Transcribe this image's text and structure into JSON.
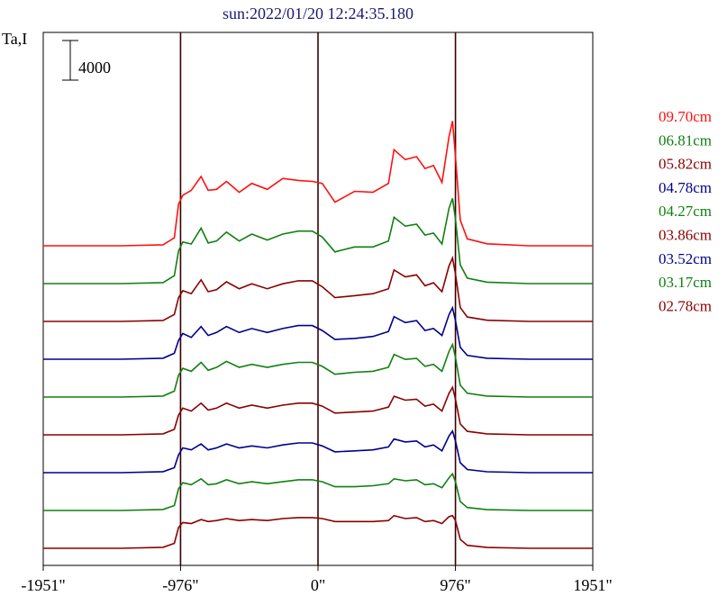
{
  "chart_data": {
    "type": "line",
    "title": "sun:2022/01/20 12:24:35.180",
    "ylabel": "Ta,I",
    "xlabel": "",
    "xlim": [
      -1951,
      1951
    ],
    "x_ticks": [
      {
        "value": -1951,
        "label": "-1951\""
      },
      {
        "value": -976,
        "label": "-976\""
      },
      {
        "value": 0,
        "label": "0\""
      },
      {
        "value": 976,
        "label": "976\""
      },
      {
        "value": 1951,
        "label": "1951\""
      }
    ],
    "vertical_lines": [
      -976,
      0,
      976
    ],
    "scale_bar": {
      "value": 4000,
      "label": "4000"
    },
    "series": [
      {
        "name": "09.70cm",
        "color": "#ff1010",
        "offset": 0,
        "x": [
          -1951,
          -1400,
          -1100,
          -1020,
          -990,
          -960,
          -900,
          -830,
          -780,
          -720,
          -650,
          -560,
          -470,
          -360,
          -250,
          -140,
          -40,
          30,
          120,
          260,
          390,
          500,
          540,
          620,
          700,
          760,
          820,
          880,
          930,
          955,
          976,
          1010,
          1060,
          1200,
          1500,
          1951
        ],
        "y": [
          0,
          0,
          100,
          800,
          4200,
          5100,
          5600,
          7000,
          5600,
          5700,
          6500,
          5400,
          6300,
          5700,
          6800,
          6600,
          6500,
          6300,
          4400,
          5500,
          5400,
          6300,
          9700,
          8700,
          9000,
          7800,
          8100,
          6400,
          11000,
          12600,
          9000,
          2600,
          700,
          200,
          0,
          0
        ]
      },
      {
        "name": "06.81cm",
        "color": "#108010",
        "offset": 0,
        "x": [
          -1951,
          -1400,
          -1100,
          -1020,
          -990,
          -960,
          -900,
          -830,
          -780,
          -720,
          -650,
          -560,
          -470,
          -360,
          -250,
          -140,
          -40,
          30,
          120,
          260,
          390,
          500,
          540,
          620,
          700,
          760,
          820,
          880,
          930,
          955,
          976,
          1010,
          1060,
          1200,
          1500,
          1951
        ],
        "y": [
          0,
          0,
          100,
          800,
          3300,
          4200,
          4000,
          5600,
          4100,
          4300,
          5200,
          4300,
          5000,
          4400,
          5000,
          5300,
          5300,
          4700,
          3200,
          3700,
          3700,
          4300,
          6700,
          5800,
          6000,
          4900,
          5100,
          4000,
          7600,
          8600,
          6500,
          1900,
          550,
          150,
          0,
          0
        ]
      },
      {
        "name": "05.82cm",
        "color": "#8b0000",
        "offset": 0,
        "x": [
          -1951,
          -1400,
          -1100,
          -1020,
          -990,
          -960,
          -900,
          -830,
          -780,
          -720,
          -650,
          -560,
          -470,
          -360,
          -250,
          -140,
          -40,
          30,
          120,
          260,
          390,
          500,
          540,
          620,
          700,
          760,
          820,
          880,
          930,
          955,
          976,
          1010,
          1060,
          1200,
          1500,
          1951
        ],
        "y": [
          0,
          0,
          100,
          700,
          2400,
          3100,
          2800,
          4200,
          3000,
          3200,
          4000,
          3300,
          3800,
          3300,
          3800,
          4100,
          4100,
          3500,
          2400,
          2600,
          2800,
          3300,
          5200,
          4500,
          4700,
          3600,
          3900,
          3000,
          5600,
          6400,
          4800,
          1400,
          450,
          120,
          0,
          0
        ]
      },
      {
        "name": "04.78cm",
        "color": "#00008b",
        "offset": 0,
        "x": [
          -1951,
          -1400,
          -1100,
          -1020,
          -990,
          -960,
          -900,
          -830,
          -780,
          -720,
          -650,
          -560,
          -470,
          -360,
          -250,
          -140,
          -40,
          30,
          120,
          260,
          390,
          500,
          540,
          620,
          700,
          760,
          820,
          880,
          930,
          955,
          976,
          1010,
          1060,
          1200,
          1500,
          1951
        ],
        "y": [
          0,
          0,
          100,
          600,
          1900,
          2600,
          2200,
          3300,
          2400,
          2700,
          3300,
          2700,
          3100,
          2700,
          3100,
          3400,
          3400,
          2900,
          2000,
          2100,
          2300,
          2800,
          4300,
          3700,
          3900,
          2900,
          3100,
          2400,
          4500,
          5200,
          3900,
          1200,
          380,
          100,
          0,
          0
        ]
      },
      {
        "name": "04.27cm",
        "color": "#108010",
        "offset": 0,
        "x": [
          -1951,
          -1400,
          -1100,
          -1020,
          -990,
          -960,
          -900,
          -830,
          -780,
          -720,
          -650,
          -560,
          -470,
          -360,
          -250,
          -140,
          -40,
          30,
          120,
          260,
          390,
          500,
          540,
          620,
          700,
          760,
          820,
          880,
          930,
          955,
          976,
          1010,
          1060,
          1200,
          1500,
          1951
        ],
        "y": [
          0,
          0,
          100,
          600,
          2200,
          2900,
          2600,
          3500,
          2700,
          3000,
          3600,
          3000,
          3300,
          3000,
          3300,
          3500,
          3500,
          3100,
          2300,
          2500,
          2600,
          3000,
          4300,
          3800,
          3900,
          3100,
          3300,
          2600,
          4600,
          5300,
          4000,
          1200,
          380,
          100,
          0,
          0
        ]
      },
      {
        "name": "03.86cm",
        "color": "#8b0000",
        "offset": 0,
        "x": [
          -1951,
          -1400,
          -1100,
          -1020,
          -990,
          -960,
          -900,
          -830,
          -780,
          -720,
          -650,
          -560,
          -470,
          -360,
          -250,
          -140,
          -40,
          30,
          120,
          260,
          390,
          500,
          540,
          620,
          700,
          760,
          820,
          880,
          930,
          955,
          976,
          1010,
          1060,
          1200,
          1500,
          1951
        ],
        "y": [
          0,
          0,
          100,
          550,
          2000,
          2700,
          2400,
          3200,
          2500,
          2700,
          3200,
          2700,
          3000,
          2700,
          3000,
          3200,
          3200,
          2900,
          2200,
          2300,
          2400,
          2800,
          3900,
          3500,
          3600,
          2900,
          3100,
          2400,
          4200,
          4800,
          3600,
          1100,
          350,
          100,
          0,
          0
        ]
      },
      {
        "name": "03.52cm",
        "color": "#00008b",
        "offset": 0,
        "x": [
          -1951,
          -1400,
          -1100,
          -1020,
          -990,
          -960,
          -900,
          -830,
          -780,
          -720,
          -650,
          -560,
          -470,
          -360,
          -250,
          -140,
          -40,
          30,
          120,
          260,
          390,
          500,
          540,
          620,
          700,
          760,
          820,
          880,
          930,
          955,
          976,
          1010,
          1060,
          1200,
          1500,
          1951
        ],
        "y": [
          0,
          0,
          100,
          500,
          1800,
          2500,
          2300,
          2900,
          2300,
          2500,
          2900,
          2500,
          2700,
          2500,
          2800,
          3000,
          3000,
          2700,
          2100,
          2200,
          2300,
          2600,
          3400,
          3100,
          3200,
          2600,
          2800,
          2200,
          3700,
          4200,
          3200,
          1000,
          320,
          90,
          0,
          0
        ]
      },
      {
        "name": "03.17cm",
        "color": "#108010",
        "offset": 0,
        "x": [
          -1951,
          -1400,
          -1100,
          -1020,
          -990,
          -960,
          -900,
          -830,
          -780,
          -720,
          -650,
          -560,
          -470,
          -360,
          -250,
          -140,
          -40,
          30,
          120,
          260,
          390,
          500,
          540,
          620,
          700,
          760,
          820,
          880,
          930,
          955,
          976,
          1010,
          1060,
          1200,
          1500,
          1951
        ],
        "y": [
          0,
          0,
          100,
          500,
          2200,
          2800,
          2600,
          3200,
          2600,
          2700,
          3100,
          2700,
          2900,
          2700,
          2900,
          3100,
          3100,
          2900,
          2400,
          2400,
          2500,
          2700,
          3200,
          3000,
          3100,
          2600,
          2700,
          2300,
          3300,
          3700,
          2900,
          900,
          300,
          80,
          0,
          0
        ]
      },
      {
        "name": "02.78cm",
        "color": "#8b0000",
        "offset": 0,
        "x": [
          -1951,
          -1400,
          -1100,
          -1020,
          -990,
          -960,
          -900,
          -830,
          -780,
          -720,
          -650,
          -560,
          -470,
          -360,
          -250,
          -140,
          -40,
          30,
          120,
          260,
          390,
          500,
          540,
          620,
          700,
          760,
          820,
          880,
          930,
          955,
          976,
          1010,
          1060,
          1200,
          1500,
          1951
        ],
        "y": [
          0,
          0,
          100,
          500,
          2100,
          2600,
          2500,
          2900,
          2700,
          2800,
          3000,
          2800,
          2900,
          2800,
          3000,
          3100,
          3100,
          3000,
          2700,
          2700,
          2700,
          2800,
          3300,
          3000,
          3100,
          2700,
          2800,
          2500,
          3200,
          3300,
          2800,
          900,
          300,
          80,
          0,
          0
        ]
      }
    ]
  }
}
